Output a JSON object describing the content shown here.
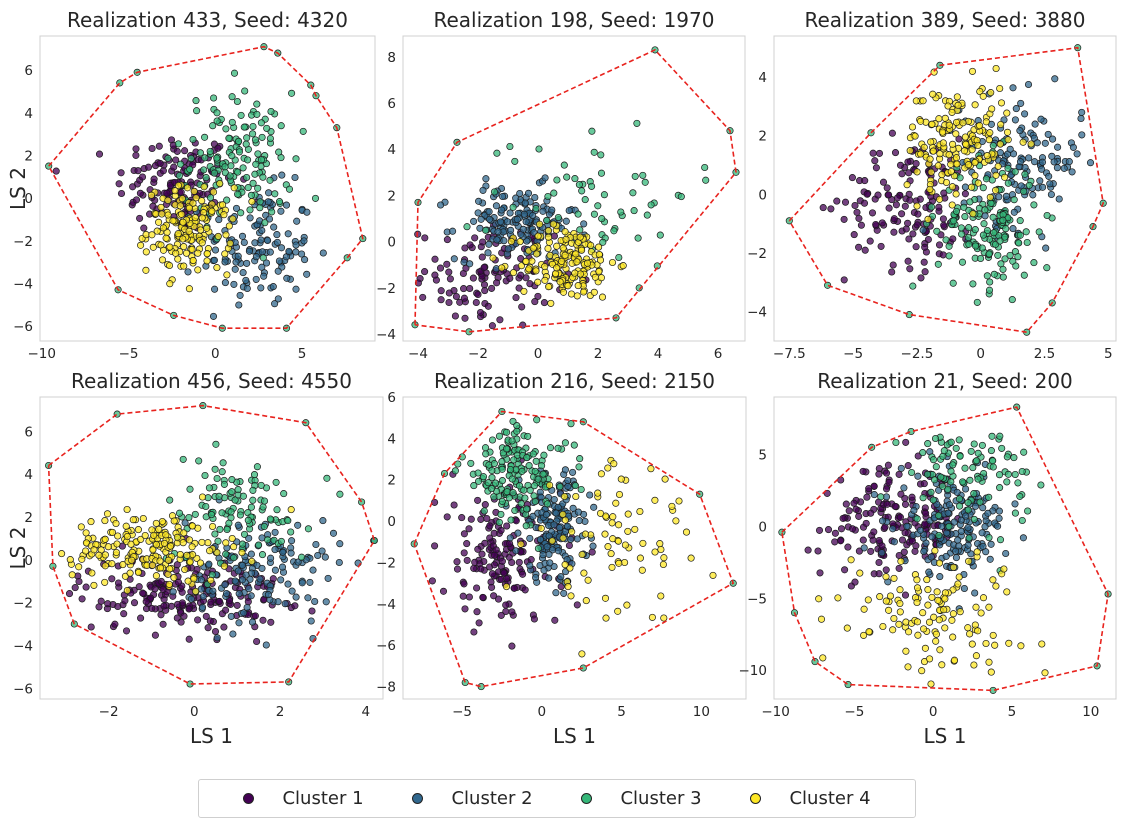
{
  "legend": [
    {
      "label": "Cluster 1",
      "color": "#440154"
    },
    {
      "label": "Cluster 2",
      "color": "#31688e"
    },
    {
      "label": "Cluster 3",
      "color": "#35b779"
    },
    {
      "label": "Cluster 4",
      "color": "#fde725"
    }
  ],
  "hull_color": "#e8231e",
  "chart_data": [
    {
      "type": "scatter",
      "title": "Realization 433, Seed: 4320",
      "xlabel": "",
      "ylabel": "LS 2",
      "xlim": [
        -10.1,
        9.2
      ],
      "ylim": [
        -6.7,
        7.6
      ],
      "xticks": [
        -10,
        -5,
        0,
        5
      ],
      "yticks": [
        -6,
        -4,
        -2,
        0,
        2,
        4,
        6
      ],
      "hull": [
        [
          -9.6,
          1.5
        ],
        [
          -5.5,
          5.4
        ],
        [
          -4.5,
          5.9
        ],
        [
          2.8,
          7.1
        ],
        [
          3.6,
          6.8
        ],
        [
          5.5,
          5.3
        ],
        [
          5.8,
          4.8
        ],
        [
          7.0,
          3.3
        ],
        [
          8.5,
          -1.9
        ],
        [
          7.6,
          -2.8
        ],
        [
          4.1,
          -6.1
        ],
        [
          0.4,
          -6.1
        ],
        [
          -2.4,
          -5.5
        ],
        [
          -5.6,
          -4.3
        ],
        [
          -9.6,
          1.5
        ]
      ],
      "clusters": [
        {
          "center": [
            -2.3,
            0.7
          ],
          "spread": [
            1.7,
            1.2
          ],
          "n": 130
        },
        {
          "center": [
            2.4,
            -2.3
          ],
          "spread": [
            1.6,
            1.4
          ],
          "n": 130
        },
        {
          "center": [
            1.3,
            1.8
          ],
          "spread": [
            1.6,
            1.6
          ],
          "n": 150
        },
        {
          "center": [
            -1.5,
            -1.5
          ],
          "spread": [
            1.2,
            1.0
          ],
          "n": 160
        }
      ]
    },
    {
      "type": "scatter",
      "title": "Realization 198, Seed: 1970",
      "xlabel": "",
      "ylabel": "",
      "xlim": [
        -4.5,
        6.9
      ],
      "ylim": [
        -4.3,
        8.9
      ],
      "xticks": [
        -4,
        -2,
        0,
        2,
        4,
        6
      ],
      "yticks": [
        -4,
        -2,
        0,
        2,
        4,
        6,
        8
      ],
      "hull": [
        [
          -4.1,
          -3.6
        ],
        [
          -4.0,
          1.7
        ],
        [
          -2.7,
          4.3
        ],
        [
          3.9,
          8.3
        ],
        [
          6.4,
          4.8
        ],
        [
          6.6,
          3.0
        ],
        [
          2.6,
          -3.3
        ],
        [
          -2.3,
          -3.9
        ],
        [
          -4.1,
          -3.6
        ]
      ],
      "clusters": [
        {
          "center": [
            -1.7,
            -1.5
          ],
          "spread": [
            1.1,
            1.1
          ],
          "n": 110
        },
        {
          "center": [
            -0.7,
            0.8
          ],
          "spread": [
            1.0,
            0.8
          ],
          "n": 150
        },
        {
          "center": [
            1.8,
            2.2
          ],
          "spread": [
            1.7,
            1.6
          ],
          "n": 60
        },
        {
          "center": [
            1.0,
            -0.9
          ],
          "spread": [
            0.8,
            0.8
          ],
          "n": 170
        }
      ]
    },
    {
      "type": "scatter",
      "title": "Realization 389, Seed: 3880",
      "xlabel": "",
      "ylabel": "",
      "xlim": [
        -8.1,
        5.3
      ],
      "ylim": [
        -5.0,
        5.4
      ],
      "xticks": [
        -7.5,
        -5.0,
        -2.5,
        0.0,
        2.5,
        5.0
      ],
      "yticks": [
        -4,
        -2,
        0,
        2,
        4
      ],
      "hull": [
        [
          -7.5,
          -0.9
        ],
        [
          -4.3,
          2.1
        ],
        [
          -1.6,
          4.4
        ],
        [
          3.8,
          5.0
        ],
        [
          4.8,
          -0.3
        ],
        [
          4.4,
          -1.1
        ],
        [
          2.8,
          -3.7
        ],
        [
          1.8,
          -4.7
        ],
        [
          -2.8,
          -4.1
        ],
        [
          -6.0,
          -3.1
        ],
        [
          -7.5,
          -0.9
        ]
      ],
      "clusters": [
        {
          "center": [
            -2.7,
            -0.3
          ],
          "spread": [
            1.3,
            1.1
          ],
          "n": 140
        },
        {
          "center": [
            1.6,
            1.1
          ],
          "spread": [
            1.2,
            1.1
          ],
          "n": 140
        },
        {
          "center": [
            0.3,
            -1.1
          ],
          "spread": [
            1.0,
            1.1
          ],
          "n": 160
        },
        {
          "center": [
            -0.9,
            1.8
          ],
          "spread": [
            1.0,
            1.0
          ],
          "n": 170
        }
      ]
    },
    {
      "type": "scatter",
      "title": "Realization 456, Seed: 4550",
      "xlabel": "LS 1",
      "ylabel": "LS 2",
      "xlim": [
        -3.6,
        4.4
      ],
      "ylim": [
        -6.5,
        7.6
      ],
      "xticks": [
        -2,
        0,
        2,
        4
      ],
      "yticks": [
        -6,
        -4,
        -2,
        0,
        2,
        4,
        6
      ],
      "hull": [
        [
          -3.4,
          4.4
        ],
        [
          -1.8,
          6.8
        ],
        [
          0.2,
          7.2
        ],
        [
          2.6,
          6.4
        ],
        [
          3.9,
          2.7
        ],
        [
          4.2,
          0.9
        ],
        [
          2.2,
          -5.7
        ],
        [
          -0.1,
          -5.8
        ],
        [
          -2.8,
          -3.0
        ],
        [
          -3.3,
          -0.3
        ],
        [
          -3.4,
          4.4
        ]
      ],
      "clusters": [
        {
          "center": [
            -0.3,
            -1.6
          ],
          "spread": [
            1.2,
            0.9
          ],
          "n": 190
        },
        {
          "center": [
            1.6,
            -0.5
          ],
          "spread": [
            0.9,
            1.2
          ],
          "n": 150
        },
        {
          "center": [
            0.9,
            2.3
          ],
          "spread": [
            0.9,
            1.3
          ],
          "n": 110
        },
        {
          "center": [
            -1.0,
            0.6
          ],
          "spread": [
            0.9,
            0.8
          ],
          "n": 190
        }
      ]
    },
    {
      "type": "scatter",
      "title": "Realization 216, Seed: 2150",
      "xlabel": "LS 1",
      "ylabel": "",
      "xlim": [
        -8.7,
        12.8
      ],
      "ylim": [
        -8.6,
        6.0
      ],
      "xticks": [
        -5,
        0,
        5,
        10
      ],
      "yticks": [
        -8,
        -6,
        -4,
        -2,
        0,
        2,
        4,
        6
      ],
      "hull": [
        [
          -8.0,
          -1.1
        ],
        [
          -6.1,
          2.3
        ],
        [
          -2.5,
          5.3
        ],
        [
          2.6,
          4.8
        ],
        [
          9.9,
          1.3
        ],
        [
          12.0,
          -3.0
        ],
        [
          2.6,
          -7.1
        ],
        [
          -3.8,
          -8.0
        ],
        [
          -4.8,
          -7.8
        ],
        [
          -8.0,
          -1.1
        ]
      ],
      "clusters": [
        {
          "center": [
            -2.6,
            -1.8
          ],
          "spread": [
            1.9,
            1.7
          ],
          "n": 160
        },
        {
          "center": [
            0.8,
            -0.3
          ],
          "spread": [
            1.1,
            1.3
          ],
          "n": 160
        },
        {
          "center": [
            -1.7,
            2.4
          ],
          "spread": [
            1.7,
            1.2
          ],
          "n": 160
        },
        {
          "center": [
            4.8,
            -1.1
          ],
          "spread": [
            2.8,
            2.0
          ],
          "n": 80
        }
      ]
    },
    {
      "type": "scatter",
      "title": "Realization 21, Seed: 200",
      "xlabel": "LS 1",
      "ylabel": "",
      "xlim": [
        -10.1,
        11.6
      ],
      "ylim": [
        -12.0,
        9.0
      ],
      "xticks": [
        -10,
        -5,
        0,
        5,
        10
      ],
      "yticks": [
        -10,
        -5,
        0,
        5
      ],
      "hull": [
        [
          -9.6,
          -0.4
        ],
        [
          -3.9,
          5.5
        ],
        [
          -1.4,
          6.6
        ],
        [
          5.3,
          8.3
        ],
        [
          11.1,
          -4.7
        ],
        [
          10.4,
          -9.7
        ],
        [
          3.8,
          -11.4
        ],
        [
          -5.4,
          -11.0
        ],
        [
          -7.5,
          -9.4
        ],
        [
          -8.8,
          -6.0
        ],
        [
          -9.6,
          -0.4
        ]
      ],
      "clusters": [
        {
          "center": [
            -2.6,
            0.2
          ],
          "spread": [
            2.3,
            1.9
          ],
          "n": 170
        },
        {
          "center": [
            1.3,
            0.1
          ],
          "spread": [
            1.7,
            1.7
          ],
          "n": 180
        },
        {
          "center": [
            2.2,
            3.6
          ],
          "spread": [
            2.0,
            1.9
          ],
          "n": 100
        },
        {
          "center": [
            -0.2,
            -5.8
          ],
          "spread": [
            2.8,
            2.1
          ],
          "n": 120
        }
      ]
    }
  ]
}
